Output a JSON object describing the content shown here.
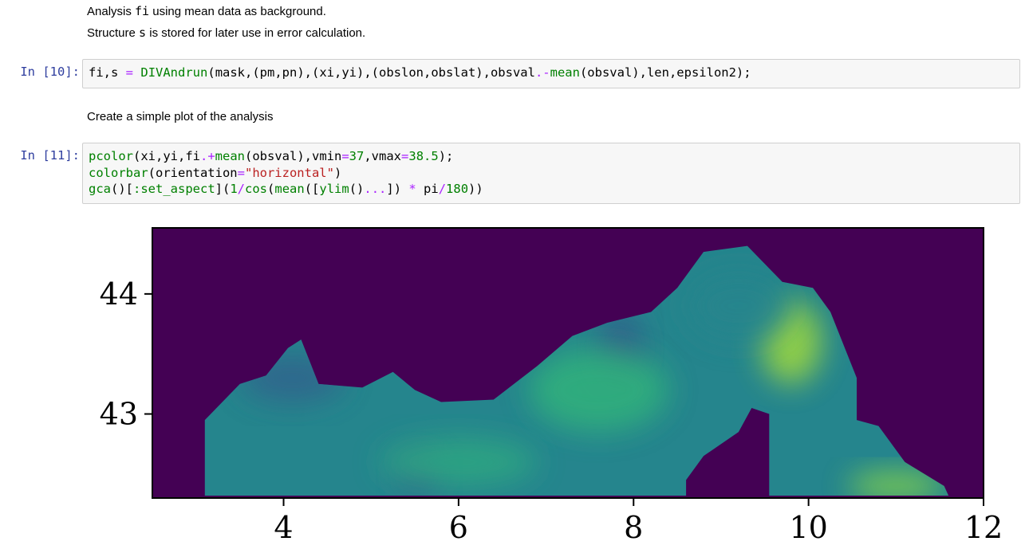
{
  "cells": {
    "md1": {
      "line1_pre": "Analysis ",
      "line1_code": "fi",
      "line1_post": " using mean data as background.",
      "line2_pre": "Structure ",
      "line2_code": "s",
      "line2_post": " is stored for later use in error calculation."
    },
    "code10": {
      "prompt": "In [10]:",
      "t1": "fi,s ",
      "t2": "=",
      "t3": " ",
      "t4": "DIVAndrun",
      "t5": "(mask,(pm,pn),(xi,yi),(obslon,obslat),obsval",
      "t6": ".-",
      "t7": "mean",
      "t8": "(obsval),len,epsilon2);"
    },
    "md2": {
      "text": "Create a simple plot of the analysis"
    },
    "code11": {
      "prompt": "In [11]:",
      "l1": {
        "a": "pcolor",
        "b": "(xi,yi,fi",
        "c": ".+",
        "d": "mean",
        "e": "(obsval),vmin",
        "f": "=",
        "g": "37",
        "h": ",vmax",
        "i": "=",
        "j": "38.5",
        "k": ");"
      },
      "l2": {
        "a": "colorbar",
        "b": "(orientation",
        "c": "=",
        "d": "\"horizontal\"",
        "e": ")"
      },
      "l3": {
        "a": "gca",
        "b": "()[",
        "c": ":set_aspect",
        "d": "](",
        "e": "1",
        "f": "/",
        "g": "cos",
        "h": "(",
        "i": "mean",
        "j": "([",
        "k": "ylim",
        "l": "()",
        "m": "...",
        "n": "]) ",
        "o": "*",
        "p": " pi",
        "q": "/",
        "r": "180",
        "s": "))"
      }
    }
  },
  "chart_data": {
    "type": "heatmap",
    "xlim": [
      2.5,
      12
    ],
    "ylim": [
      42.3,
      44.55
    ],
    "x_ticks": [
      4,
      6,
      8,
      10,
      12
    ],
    "y_ticks": [
      43,
      44
    ],
    "x_tick_labels": [
      "4",
      "6",
      "8",
      "10",
      "12"
    ],
    "y_tick_labels": [
      "43",
      "44"
    ],
    "vmin": 37,
    "vmax": 38.5,
    "colormap": "viridis",
    "mask_color": "#440154",
    "axes_background": "#440154",
    "coastline": [
      [
        3.1,
        42.32
      ],
      [
        3.1,
        42.95
      ],
      [
        3.5,
        43.25
      ],
      [
        3.8,
        43.32
      ],
      [
        4.05,
        43.55
      ],
      [
        4.2,
        43.62
      ],
      [
        4.4,
        43.25
      ],
      [
        4.9,
        43.22
      ],
      [
        5.25,
        43.35
      ],
      [
        5.5,
        43.2
      ],
      [
        5.8,
        43.1
      ],
      [
        6.4,
        43.12
      ],
      [
        6.9,
        43.4
      ],
      [
        7.3,
        43.65
      ],
      [
        7.7,
        43.76
      ],
      [
        8.2,
        43.85
      ],
      [
        8.5,
        44.05
      ],
      [
        8.8,
        44.35
      ],
      [
        9.3,
        44.4
      ],
      [
        9.7,
        44.1
      ],
      [
        10.05,
        44.05
      ],
      [
        10.25,
        43.85
      ],
      [
        10.55,
        43.3
      ],
      [
        10.55,
        42.95
      ],
      [
        10.8,
        42.9
      ],
      [
        11.1,
        42.6
      ],
      [
        11.55,
        42.4
      ],
      [
        11.6,
        42.32
      ],
      [
        9.55,
        42.32
      ],
      [
        9.55,
        43.0
      ],
      [
        9.35,
        43.05
      ],
      [
        9.2,
        42.85
      ],
      [
        8.8,
        42.65
      ],
      [
        8.6,
        42.45
      ],
      [
        8.6,
        42.32
      ]
    ],
    "blobs": [
      {
        "x": 7.85,
        "y": 43.55,
        "rx": 0.25,
        "ry": 0.3,
        "value": 37.55
      },
      {
        "x": 5.55,
        "y": 42.5,
        "rx": 0.25,
        "ry": 0.18,
        "value": 37.6
      },
      {
        "x": 4.1,
        "y": 43.3,
        "rx": 0.6,
        "ry": 0.2,
        "value": 37.6
      },
      {
        "x": 9.8,
        "y": 43.6,
        "rx": 0.35,
        "ry": 0.35,
        "value": 38.35
      },
      {
        "x": 7.6,
        "y": 43.2,
        "rx": 0.8,
        "ry": 0.35,
        "value": 38.1
      },
      {
        "x": 6.0,
        "y": 42.6,
        "rx": 0.9,
        "ry": 0.2,
        "value": 38.05
      },
      {
        "x": 11.0,
        "y": 42.4,
        "rx": 0.55,
        "ry": 0.12,
        "value": 38.3
      },
      {
        "x": 9.2,
        "y": 43.9,
        "rx": 0.6,
        "ry": 0.3,
        "value": 37.85
      }
    ],
    "base_value": 37.85
  }
}
